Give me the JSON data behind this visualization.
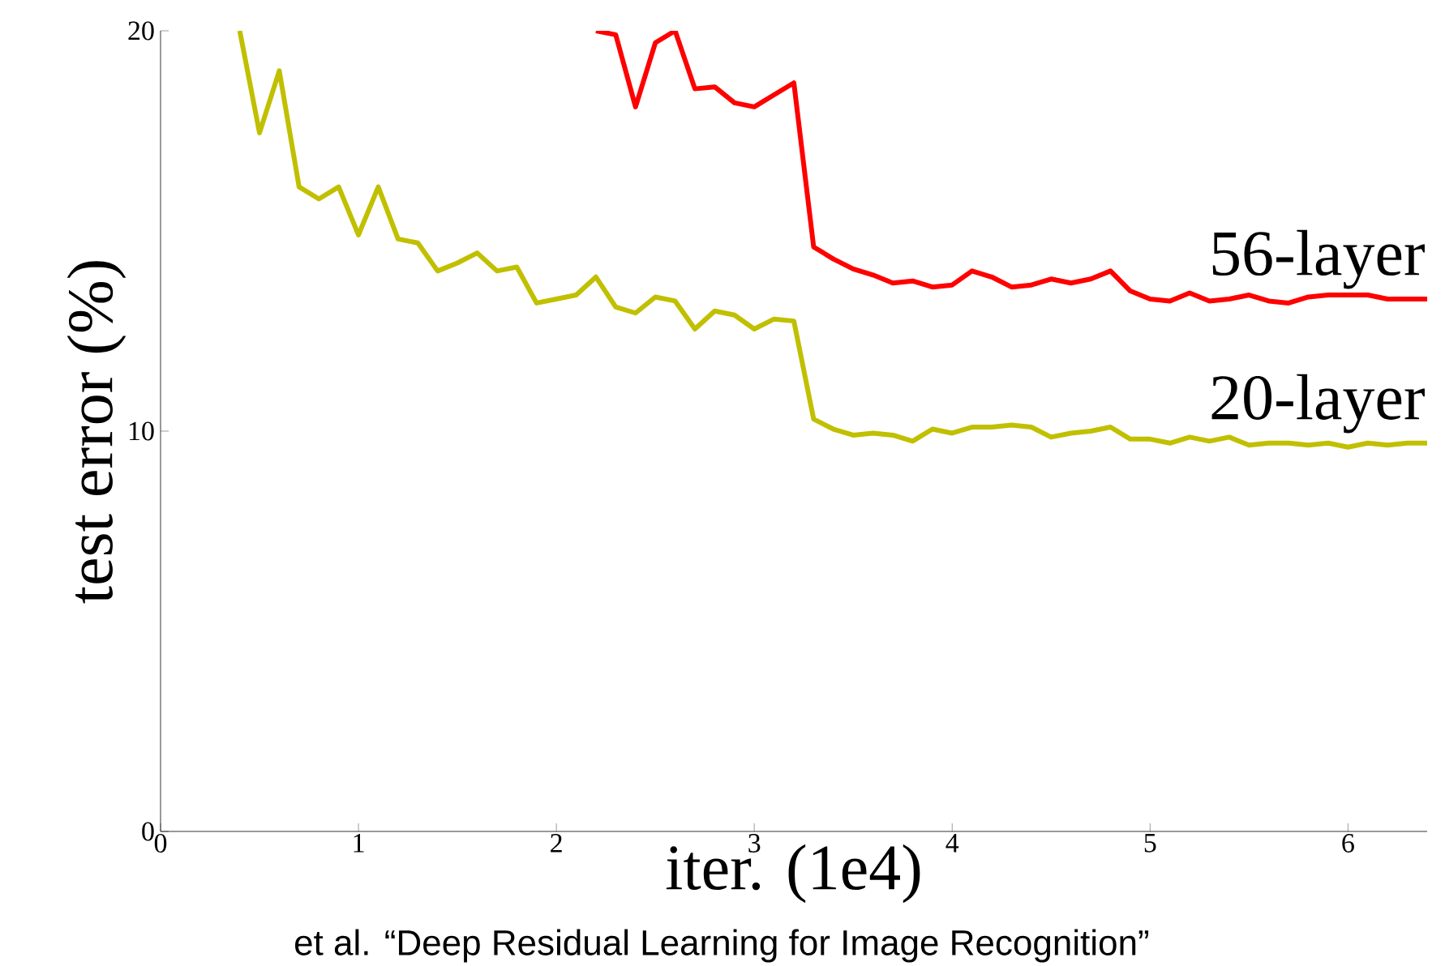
{
  "chart_data": {
    "type": "line",
    "xlabel": "iter. (1e4)",
    "ylabel": "test error (%)",
    "xlim": [
      0,
      6.4
    ],
    "ylim": [
      0,
      20
    ],
    "xticks": [
      0,
      1,
      2,
      3,
      4,
      5,
      6
    ],
    "yticks": [
      0,
      10,
      20
    ],
    "grid": false,
    "marker": "none",
    "line_style": "solid",
    "annotations": [
      "et al. “Deep Residual Learning for Image Recognition”"
    ],
    "series": [
      {
        "name": "56-layer",
        "color": "#ff0000",
        "x": [
          2.2,
          2.3,
          2.4,
          2.5,
          2.6,
          2.7,
          2.8,
          2.9,
          3.0,
          3.1,
          3.2,
          3.3,
          3.4,
          3.5,
          3.6,
          3.7,
          3.8,
          3.9,
          4.0,
          4.1,
          4.2,
          4.3,
          4.4,
          4.5,
          4.6,
          4.7,
          4.8,
          4.9,
          5.0,
          5.1,
          5.2,
          5.3,
          5.4,
          5.5,
          5.6,
          5.7,
          5.8,
          5.9,
          6.0,
          6.1,
          6.2,
          6.3,
          6.4
        ],
        "values": [
          20.0,
          19.9,
          18.1,
          19.7,
          20.0,
          18.55,
          18.6,
          18.2,
          18.1,
          18.4,
          18.7,
          14.6,
          14.3,
          14.05,
          13.9,
          13.7,
          13.75,
          13.6,
          13.65,
          14.0,
          13.85,
          13.6,
          13.65,
          13.8,
          13.7,
          13.8,
          14.0,
          13.5,
          13.3,
          13.25,
          13.45,
          13.25,
          13.3,
          13.4,
          13.25,
          13.2,
          13.35,
          13.4,
          13.4,
          13.4,
          13.3,
          13.3,
          13.3
        ]
      },
      {
        "name": "20-layer",
        "color": "#c0c000",
        "x": [
          0.4,
          0.5,
          0.6,
          0.7,
          0.8,
          0.9,
          1.0,
          1.1,
          1.2,
          1.3,
          1.4,
          1.5,
          1.6,
          1.7,
          1.8,
          1.9,
          2.0,
          2.1,
          2.2,
          2.3,
          2.4,
          2.5,
          2.6,
          2.7,
          2.8,
          2.9,
          3.0,
          3.1,
          3.2,
          3.3,
          3.4,
          3.5,
          3.6,
          3.7,
          3.8,
          3.9,
          4.0,
          4.1,
          4.2,
          4.3,
          4.4,
          4.5,
          4.6,
          4.7,
          4.8,
          4.9,
          5.0,
          5.1,
          5.2,
          5.3,
          5.4,
          5.5,
          5.6,
          5.7,
          5.8,
          5.9,
          6.0,
          6.1,
          6.2,
          6.3,
          6.4
        ],
        "values": [
          20.0,
          17.45,
          19.0,
          16.1,
          15.8,
          16.1,
          14.9,
          16.1,
          14.8,
          14.7,
          14.0,
          14.2,
          14.45,
          14.0,
          14.1,
          13.2,
          13.3,
          13.4,
          13.85,
          13.1,
          12.95,
          13.35,
          13.25,
          12.55,
          13.0,
          12.9,
          12.55,
          12.8,
          12.75,
          10.3,
          10.05,
          9.9,
          9.95,
          9.9,
          9.75,
          10.05,
          9.95,
          10.1,
          10.1,
          10.15,
          10.1,
          9.85,
          9.95,
          10.0,
          10.1,
          9.8,
          9.8,
          9.7,
          9.85,
          9.75,
          9.85,
          9.65,
          9.7,
          9.7,
          9.65,
          9.7,
          9.6,
          9.7,
          9.65,
          9.7,
          9.7
        ]
      }
    ]
  }
}
